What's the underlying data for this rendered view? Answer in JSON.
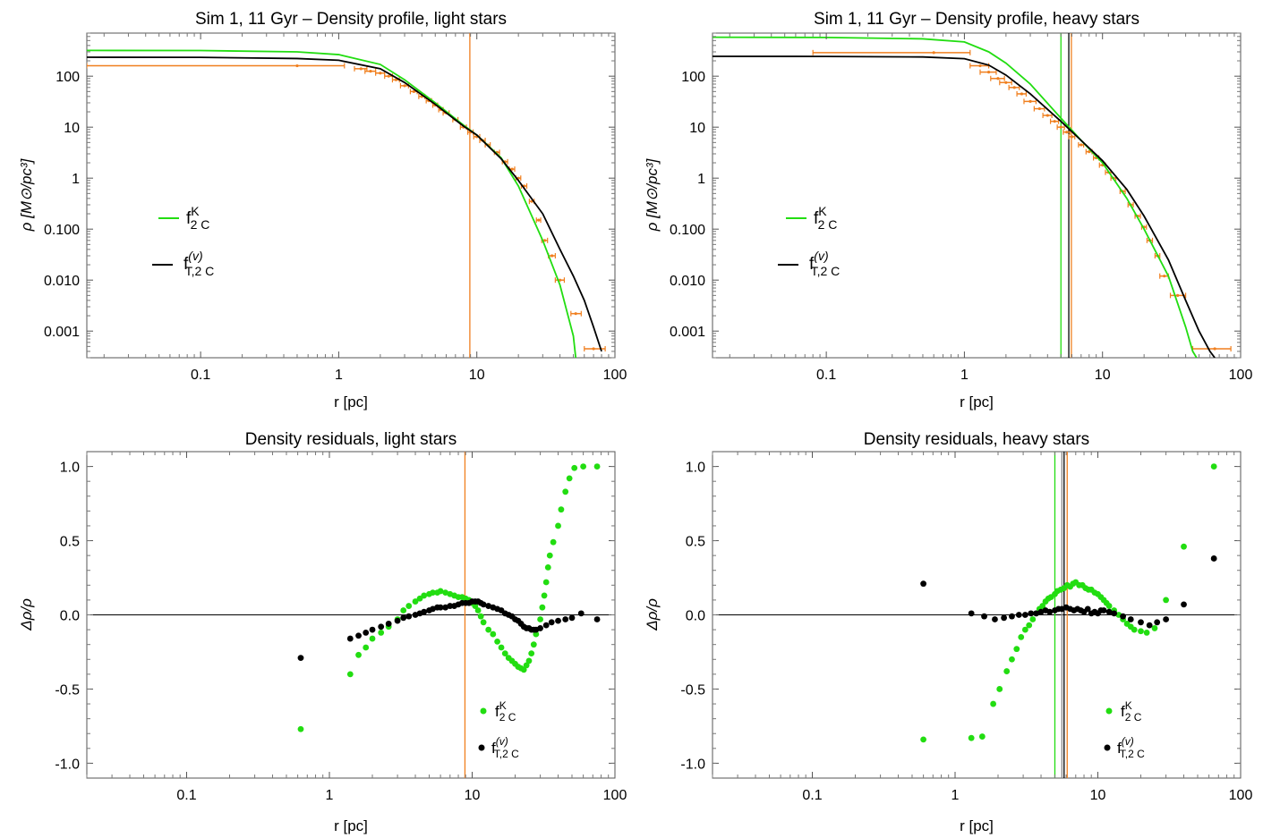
{
  "colors": {
    "kingGreen": "#22dd11",
    "tidalBlack": "#000000",
    "dataOrange": "#f07f1e",
    "vlineGray": "#888888"
  },
  "legend": {
    "king": {
      "base": "f",
      "sup": "K",
      "sub": "2 C"
    },
    "tidal": {
      "base": "f",
      "sup": "(v)",
      "sub": "T,2 C"
    }
  },
  "panels": [
    {
      "title": "Sim 1, 11 Gyr – Density profile, light stars",
      "xlabel": "r [pc]",
      "ylabel": "ρ [M⊙/pc³]",
      "xticks": [
        "0.1",
        "1",
        "10",
        "100"
      ],
      "yticks": [
        "100",
        "10",
        "1",
        "0.100",
        "0.010",
        "0.001"
      ]
    },
    {
      "title": "Sim 1, 11 Gyr – Density profile, heavy stars",
      "xlabel": "r [pc]",
      "ylabel": "ρ [M⊙/pc³]",
      "xticks": [
        "0.1",
        "1",
        "10",
        "100"
      ],
      "yticks": [
        "100",
        "10",
        "1",
        "0.100",
        "0.010",
        "0.001"
      ]
    },
    {
      "title": "Density residuals, light stars",
      "xlabel": "r [pc]",
      "ylabel": "Δρ/ρ",
      "xticks": [
        "0.1",
        "1",
        "10",
        "100"
      ],
      "yticks": [
        "1.0",
        "0.5",
        "0.0",
        "-0.5",
        "-1.0"
      ]
    },
    {
      "title": "Density residuals, heavy stars",
      "xlabel": "r [pc]",
      "ylabel": "Δρ/ρ",
      "xticks": [
        "0.1",
        "1",
        "10",
        "100"
      ],
      "yticks": [
        "1.0",
        "0.5",
        "0.0",
        "-0.5",
        "-1.0"
      ]
    }
  ],
  "chart_data": [
    {
      "type": "line",
      "title": "Sim 1, 11 Gyr – Density profile, light stars",
      "xlabel": "r [pc]",
      "ylabel": "ρ [M⊙/pc³]",
      "xscale": "log",
      "yscale": "log",
      "xlim": [
        0.015,
        100
      ],
      "ylim": [
        0.0003,
        700
      ],
      "series": [
        {
          "name": "f2C K",
          "color": "#22dd11",
          "x": [
            0.015,
            0.1,
            0.5,
            1,
            2,
            3,
            5,
            8,
            10,
            15,
            20,
            30,
            40,
            50,
            52
          ],
          "y": [
            320,
            318,
            300,
            265,
            170,
            85,
            30,
            11,
            7,
            2.5,
            0.7,
            0.06,
            0.008,
            0.0008,
            0.0003
          ]
        },
        {
          "name": "fT,2C (v)",
          "color": "#000000",
          "x": [
            0.015,
            0.1,
            0.5,
            1,
            2,
            3,
            5,
            8,
            10,
            15,
            20,
            30,
            40,
            50,
            60,
            70,
            80
          ],
          "y": [
            235,
            234,
            222,
            205,
            140,
            75,
            28,
            10.5,
            7,
            2.4,
            0.9,
            0.2,
            0.04,
            0.012,
            0.004,
            0.0012,
            0.0004
          ]
        }
      ],
      "points": {
        "color": "#f07f1e",
        "x": [
          0.5,
          1.45,
          1.7,
          2,
          2.3,
          2.6,
          3,
          3.5,
          4,
          4.5,
          5,
          5.5,
          6,
          7,
          8,
          9,
          10,
          11,
          12,
          14,
          16,
          18,
          20,
          22,
          25,
          28,
          31,
          35,
          40,
          52,
          70
        ],
        "xerr_low": [
          0.485,
          0.15,
          0.15,
          0.15,
          0.15,
          0.15,
          0.2,
          0.2,
          0.2,
          0.2,
          0.2,
          0.2,
          0.3,
          0.3,
          0.4,
          0.4,
          0.5,
          0.5,
          0.5,
          0.6,
          0.7,
          0.8,
          0.8,
          1,
          1,
          1,
          1.5,
          2,
          3,
          4,
          10
        ],
        "xerr_high": [
          0.6,
          0.15,
          0.15,
          0.15,
          0.15,
          0.15,
          0.2,
          0.2,
          0.2,
          0.2,
          0.2,
          0.2,
          0.3,
          0.3,
          0.4,
          0.4,
          0.5,
          0.5,
          0.5,
          0.6,
          0.7,
          0.8,
          0.8,
          1,
          1,
          1,
          1.5,
          2,
          3,
          5,
          15
        ],
        "y": [
          160,
          140,
          125,
          115,
          100,
          85,
          65,
          50,
          40,
          33,
          27,
          22,
          19,
          14,
          10,
          8,
          6.5,
          5.5,
          4.5,
          3.2,
          2.1,
          1.5,
          1.0,
          0.7,
          0.35,
          0.15,
          0.06,
          0.03,
          0.01,
          0.0022,
          0.00045
        ]
      },
      "vlines": [
        {
          "x": 8.9,
          "color": "#f07f1e"
        }
      ]
    },
    {
      "type": "line",
      "title": "Sim 1, 11 Gyr – Density profile, heavy stars",
      "xlabel": "r [pc]",
      "ylabel": "ρ [M⊙/pc³]",
      "xscale": "log",
      "yscale": "log",
      "xlim": [
        0.015,
        100
      ],
      "ylim": [
        0.0003,
        700
      ],
      "series": [
        {
          "name": "f2C K",
          "color": "#22dd11",
          "x": [
            0.015,
            0.1,
            0.5,
            1,
            1.5,
            2,
            3,
            5,
            7,
            10,
            15,
            20,
            30,
            40,
            45,
            48
          ],
          "y": [
            580,
            575,
            540,
            470,
            300,
            180,
            70,
            15,
            5.5,
            2,
            0.4,
            0.1,
            0.012,
            0.0012,
            0.0004,
            0.0003
          ]
        },
        {
          "name": "fT,2C (v)",
          "color": "#000000",
          "x": [
            0.015,
            0.1,
            0.5,
            1,
            1.5,
            2,
            3,
            5,
            7,
            10,
            15,
            20,
            30,
            40,
            50,
            60,
            65
          ],
          "y": [
            245,
            244,
            238,
            220,
            165,
            105,
            45,
            13,
            5.5,
            2.2,
            0.6,
            0.18,
            0.025,
            0.004,
            0.001,
            0.0004,
            0.0003
          ]
        }
      ],
      "points": {
        "color": "#f07f1e",
        "x": [
          0.6,
          1.3,
          1.5,
          1.75,
          2,
          2.3,
          2.6,
          3,
          3.5,
          4,
          4.5,
          5,
          5.5,
          6,
          7,
          8,
          9,
          10,
          11,
          12,
          14,
          16,
          18,
          20,
          22,
          25,
          28,
          35,
          65
        ],
        "xerr_low": [
          0.52,
          0.2,
          0.2,
          0.2,
          0.2,
          0.2,
          0.2,
          0.3,
          0.3,
          0.3,
          0.3,
          0.3,
          0.3,
          0.3,
          0.3,
          0.4,
          0.4,
          0.5,
          0.5,
          0.5,
          0.6,
          0.7,
          0.8,
          0.8,
          1,
          1,
          2,
          4,
          20
        ],
        "xerr_high": [
          0.5,
          0.2,
          0.2,
          0.2,
          0.2,
          0.2,
          0.2,
          0.3,
          0.3,
          0.3,
          0.3,
          0.3,
          0.3,
          0.3,
          0.3,
          0.4,
          0.4,
          0.5,
          0.5,
          0.5,
          0.6,
          0.7,
          0.8,
          0.8,
          1,
          1,
          2,
          5,
          20
        ],
        "y": [
          290,
          160,
          120,
          90,
          75,
          60,
          45,
          32,
          23,
          17,
          13,
          10,
          8,
          6.5,
          4.5,
          3.3,
          2.5,
          1.8,
          1.3,
          1.0,
          0.55,
          0.3,
          0.18,
          0.11,
          0.06,
          0.03,
          0.012,
          0.005,
          0.00045
        ]
      },
      "vlines": [
        {
          "x": 5.0,
          "color": "#22dd11"
        },
        {
          "x": 5.7,
          "color": "#000000"
        },
        {
          "x": 5.95,
          "color": "#f07f1e"
        }
      ]
    },
    {
      "type": "scatter",
      "title": "Density residuals, light stars",
      "xlabel": "r [pc]",
      "ylabel": "Δρ/ρ",
      "xscale": "log",
      "xlim": [
        0.02,
        100
      ],
      "ylim": [
        -1.1,
        1.1
      ],
      "hline": 0,
      "series": [
        {
          "name": "f2C K",
          "color": "#22dd11",
          "x": [
            0.63,
            1.4,
            1.6,
            1.8,
            2.0,
            2.3,
            2.6,
            3.0,
            3.3,
            3.6,
            4.0,
            4.3,
            4.6,
            5.0,
            5.3,
            5.7,
            6.0,
            6.5,
            7.0,
            7.5,
            8.0,
            8.5,
            9.0,
            9.5,
            10,
            10.5,
            11,
            11.5,
            12,
            13,
            14,
            15,
            16,
            17,
            18,
            19,
            20,
            21,
            22,
            23,
            24,
            25,
            26,
            27,
            28,
            30,
            31,
            32,
            33,
            34,
            35,
            37,
            40,
            42,
            45,
            48,
            52,
            60,
            75
          ],
          "y": [
            -0.77,
            -0.4,
            -0.27,
            -0.22,
            -0.16,
            -0.12,
            -0.08,
            -0.03,
            0.03,
            0.06,
            0.09,
            0.11,
            0.13,
            0.14,
            0.15,
            0.15,
            0.16,
            0.15,
            0.14,
            0.13,
            0.12,
            0.12,
            0.11,
            0.1,
            0.08,
            0.06,
            0.03,
            -0.01,
            -0.05,
            -0.1,
            -0.13,
            -0.18,
            -0.22,
            -0.26,
            -0.29,
            -0.31,
            -0.33,
            -0.35,
            -0.36,
            -0.37,
            -0.34,
            -0.31,
            -0.26,
            -0.2,
            -0.13,
            -0.03,
            0.05,
            0.13,
            0.22,
            0.32,
            0.4,
            0.49,
            0.6,
            0.71,
            0.83,
            0.92,
            0.99,
            1.0,
            1.0
          ]
        },
        {
          "name": "fT,2C (v)",
          "color": "#000000",
          "x": [
            0.63,
            1.4,
            1.6,
            1.8,
            2.0,
            2.3,
            2.6,
            3.0,
            3.3,
            3.6,
            4.0,
            4.3,
            4.6,
            5.0,
            5.3,
            5.7,
            6.0,
            6.5,
            7.0,
            7.5,
            8.0,
            8.5,
            9.0,
            9.5,
            10,
            10.5,
            11,
            11.5,
            12,
            13,
            14,
            15,
            16,
            17,
            18,
            19,
            20,
            21,
            22,
            23,
            24,
            25,
            26,
            27,
            28,
            30,
            33,
            36,
            40,
            45,
            50,
            58,
            75
          ],
          "y": [
            -0.29,
            -0.16,
            -0.14,
            -0.12,
            -0.1,
            -0.08,
            -0.06,
            -0.04,
            -0.02,
            -0.01,
            0.0,
            0.01,
            0.02,
            0.03,
            0.04,
            0.05,
            0.05,
            0.05,
            0.06,
            0.06,
            0.07,
            0.08,
            0.08,
            0.08,
            0.09,
            0.09,
            0.09,
            0.08,
            0.07,
            0.06,
            0.05,
            0.04,
            0.03,
            0.01,
            0.0,
            -0.01,
            -0.03,
            -0.04,
            -0.06,
            -0.08,
            -0.09,
            -0.09,
            -0.1,
            -0.1,
            -0.1,
            -0.09,
            -0.07,
            -0.05,
            -0.04,
            -0.03,
            -0.02,
            0.01,
            -0.03
          ]
        }
      ],
      "vlines": [
        {
          "x": 8.9,
          "color": "#f07f1e"
        }
      ]
    },
    {
      "type": "scatter",
      "title": "Density residuals, heavy stars",
      "xlabel": "r [pc]",
      "ylabel": "Δρ/ρ",
      "xscale": "log",
      "xlim": [
        0.02,
        100
      ],
      "ylim": [
        -1.1,
        1.1
      ],
      "hline": 0,
      "series": [
        {
          "name": "f2C K",
          "color": "#22dd11",
          "x": [
            0.6,
            1.3,
            1.55,
            1.85,
            2.05,
            2.3,
            2.5,
            2.7,
            2.9,
            3.1,
            3.3,
            3.5,
            3.7,
            3.9,
            4.1,
            4.3,
            4.5,
            4.7,
            5.0,
            5.2,
            5.5,
            5.8,
            6.1,
            6.4,
            6.7,
            7.0,
            7.4,
            7.8,
            8.2,
            8.6,
            9.0,
            9.5,
            10,
            10.5,
            11,
            11.5,
            12,
            13,
            14,
            15,
            16,
            17,
            18,
            20,
            22,
            25,
            30,
            40,
            65
          ],
          "y": [
            -0.84,
            -0.83,
            -0.82,
            -0.6,
            -0.5,
            -0.38,
            -0.3,
            -0.23,
            -0.15,
            -0.1,
            -0.07,
            -0.03,
            0.01,
            0.04,
            0.06,
            0.09,
            0.11,
            0.12,
            0.14,
            0.16,
            0.17,
            0.18,
            0.2,
            0.19,
            0.21,
            0.22,
            0.2,
            0.2,
            0.18,
            0.17,
            0.17,
            0.15,
            0.14,
            0.12,
            0.1,
            0.08,
            0.06,
            0.03,
            0.0,
            -0.03,
            -0.06,
            -0.08,
            -0.1,
            -0.11,
            -0.12,
            -0.09,
            0.1,
            0.46,
            1.0
          ]
        },
        {
          "name": "fT,2C (v)",
          "color": "#000000",
          "x": [
            0.6,
            1.3,
            1.6,
            1.9,
            2.2,
            2.5,
            2.8,
            3.1,
            3.4,
            3.7,
            4.0,
            4.3,
            4.6,
            5.0,
            5.3,
            5.6,
            6.0,
            6.4,
            6.8,
            7.2,
            7.6,
            8.0,
            8.5,
            9.0,
            9.5,
            10,
            10.5,
            11,
            12,
            13,
            15,
            17,
            20,
            23,
            26,
            30,
            40,
            65
          ],
          "y": [
            0.21,
            0.01,
            -0.01,
            -0.03,
            -0.02,
            -0.01,
            0.0,
            0.0,
            0.01,
            0.01,
            0.02,
            0.03,
            0.02,
            0.03,
            0.04,
            0.04,
            0.05,
            0.04,
            0.03,
            0.04,
            0.03,
            0.02,
            0.04,
            0.01,
            0.02,
            0.01,
            0.03,
            0.03,
            0.02,
            0.01,
            -0.01,
            -0.03,
            -0.05,
            -0.07,
            -0.05,
            -0.03,
            0.07,
            0.38
          ]
        }
      ],
      "vlines": [
        {
          "x": 5.0,
          "color": "#22dd11"
        },
        {
          "x": 5.6,
          "color": "#888888"
        },
        {
          "x": 5.8,
          "color": "#000000"
        },
        {
          "x": 6.1,
          "color": "#f07f1e"
        }
      ]
    }
  ]
}
